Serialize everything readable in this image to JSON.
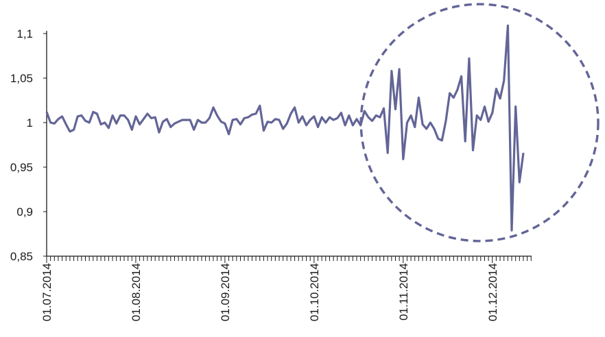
{
  "chart_data": {
    "type": "line",
    "title": "",
    "xlabel": "",
    "ylabel": "",
    "ylim": [
      0.85,
      1.1
    ],
    "y_ticks": [
      "0,85",
      "0,9",
      "0,95",
      "1",
      "1,05",
      "1,1"
    ],
    "y_tick_values": [
      0.85,
      0.9,
      0.95,
      1.0,
      1.05,
      1.1
    ],
    "x_tick_labels": [
      "01.07.2014",
      "01.08.2014",
      "01.09.2014",
      "01.10.2014",
      "01.11.2014",
      "01.12.2014"
    ],
    "x_tick_index": [
      0,
      23,
      46,
      69,
      92,
      115
    ],
    "grid": false,
    "legend": "none",
    "series": [
      {
        "color": "#636597",
        "values": [
          1.012,
          1.0,
          0.999,
          1.004,
          1.007,
          0.998,
          0.99,
          0.992,
          1.007,
          1.008,
          1.002,
          1.0,
          1.012,
          1.01,
          0.998,
          1.0,
          0.994,
          1.008,
          0.999,
          1.008,
          1.008,
          1.003,
          0.992,
          1.007,
          0.998,
          1.004,
          1.01,
          1.005,
          1.006,
          0.989,
          1.001,
          1.004,
          0.995,
          0.999,
          1.001,
          1.003,
          1.003,
          1.003,
          0.992,
          1.003,
          1.0,
          1.0,
          1.005,
          1.017,
          1.008,
          1.001,
          0.999,
          0.987,
          1.003,
          1.004,
          0.998,
          1.005,
          1.006,
          1.009,
          1.01,
          1.019,
          0.991,
          1.001,
          1.0,
          1.004,
          1.003,
          0.993,
          0.999,
          1.01,
          1.017,
          1.0,
          1.007,
          0.997,
          1.003,
          1.007,
          0.995,
          1.006,
          1.0,
          1.006,
          1.003,
          1.005,
          1.011,
          0.997,
          1.008,
          0.997,
          1.004,
          0.997,
          1.013,
          1.006,
          1.002,
          1.008,
          1.006,
          1.016,
          0.966,
          1.058,
          1.015,
          1.06,
          0.959,
          1.0,
          1.008,
          0.995,
          1.028,
          0.998,
          0.993,
          1.0,
          0.993,
          0.982,
          0.98,
          1.002,
          1.033,
          1.028,
          1.037,
          1.052,
          0.979,
          1.072,
          0.969,
          1.008,
          1.003,
          1.018,
          1.001,
          1.011,
          1.038,
          1.027,
          1.047,
          1.109,
          0.879,
          1.018,
          0.933,
          0.966
        ]
      }
    ],
    "annotations": [
      {
        "type": "dashed-circle",
        "color": "#636597",
        "center_index": 111.7,
        "center_value": 1.0,
        "radius_x_days": 30.6
      }
    ]
  }
}
